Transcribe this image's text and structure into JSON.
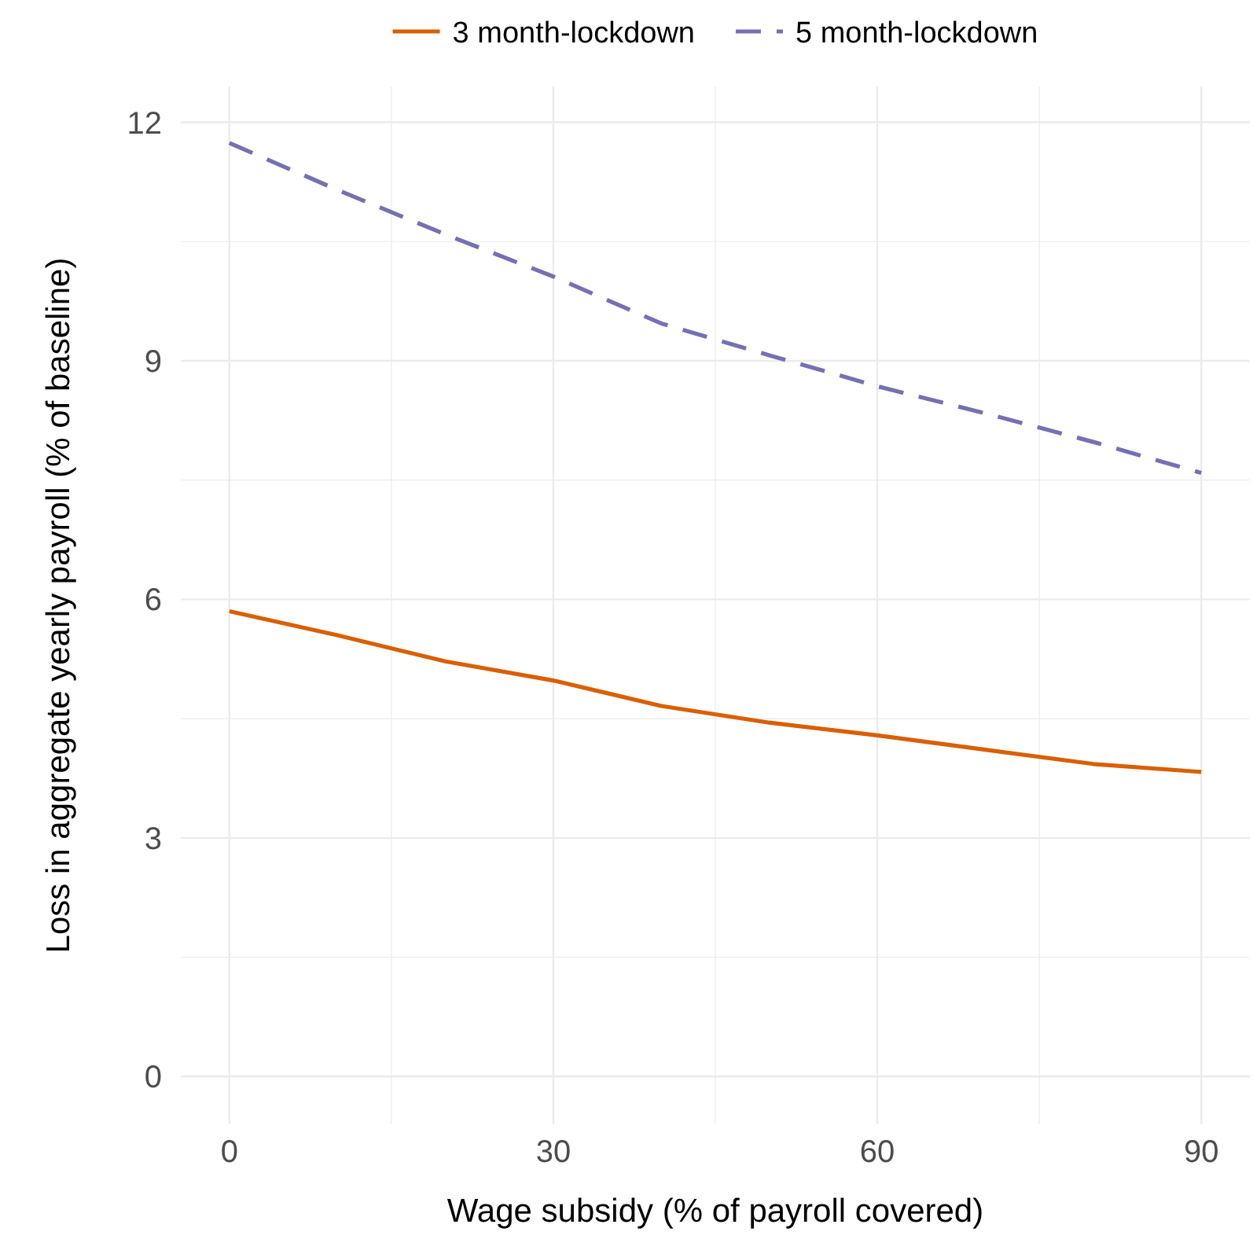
{
  "chart_data": {
    "type": "line",
    "xlabel": "Wage subsidy (% of payroll covered)",
    "ylabel": "Loss in aggregate yearly payroll (% of baseline)",
    "x": [
      0,
      10,
      20,
      30,
      40,
      50,
      60,
      70,
      80,
      90
    ],
    "series": [
      {
        "name": "3 month-lockdown",
        "color": "#d95f02",
        "line_style": "solid",
        "values": [
          5.85,
          5.55,
          5.22,
          4.98,
          4.66,
          4.45,
          4.29,
          4.11,
          3.93,
          3.83
        ]
      },
      {
        "name": "5 month-lockdown",
        "color": "#7570b3",
        "line_style": "dashed",
        "values": [
          11.74,
          11.15,
          10.59,
          10.06,
          9.47,
          9.07,
          8.68,
          8.34,
          7.98,
          7.59
        ]
      }
    ],
    "xlim": [
      -4.5,
      94.5
    ],
    "ylim": [
      -0.6,
      12.45
    ],
    "xticks": [
      0,
      {
        "value": 15,
        "label": null
      },
      30,
      {
        "value": 45,
        "label": null
      },
      60,
      {
        "value": 75,
        "label": null
      },
      90
    ],
    "yticks": [
      0,
      {
        "value": 1.5,
        "label": null
      },
      3,
      {
        "value": 4.5,
        "label": null
      },
      6,
      {
        "value": 7.5,
        "label": null
      },
      9,
      {
        "value": 10.5,
        "label": null
      },
      12
    ],
    "grid": true,
    "legend": "top",
    "marker": "none"
  }
}
